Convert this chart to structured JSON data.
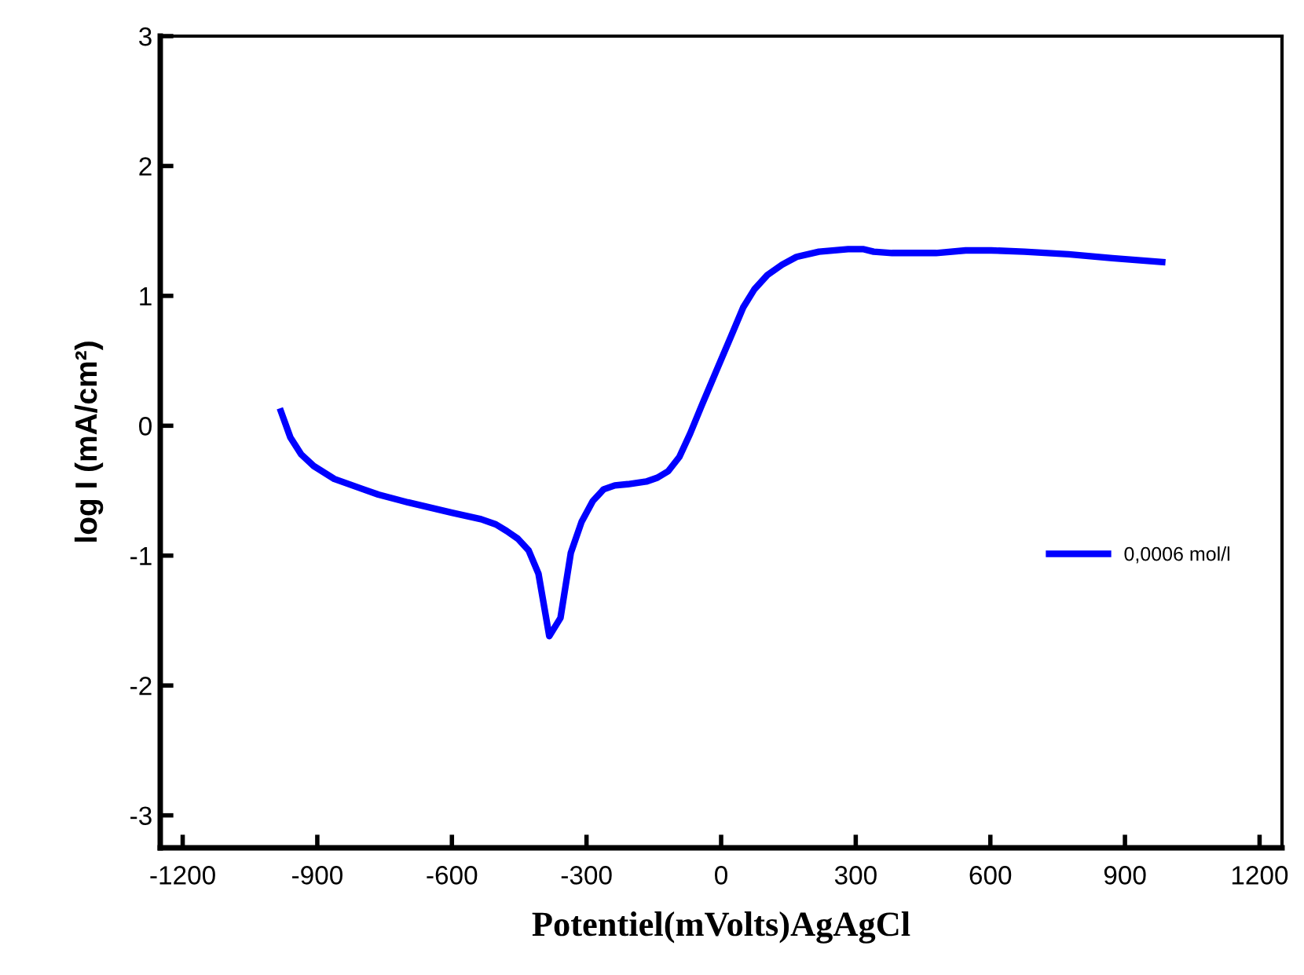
{
  "chart_data": {
    "type": "line",
    "xlabel": "Potentiel(mVolts)AgAgCl",
    "ylabel": "log I (mA/cm²)",
    "xlim": [
      -1250,
      1250
    ],
    "xticks": [
      -1200,
      -900,
      -600,
      -300,
      0,
      300,
      600,
      900,
      1200
    ],
    "ylim": [
      -3.25,
      3
    ],
    "yticks": [
      -3,
      -2,
      -1,
      0,
      1,
      2,
      3
    ],
    "grid": false,
    "legend": "right",
    "marker": "none",
    "line_style": "solid",
    "x": [
      -981,
      -960,
      -936,
      -908,
      -862,
      -797,
      -764,
      -698,
      -600,
      -535,
      -502,
      -478,
      -453,
      -429,
      -407,
      -383,
      -358,
      -335,
      -311,
      -286,
      -262,
      -237,
      -208,
      -167,
      -142,
      -118,
      -93,
      -69,
      -44,
      -11,
      21,
      49,
      74,
      103,
      136,
      168,
      218,
      283,
      316,
      340,
      381,
      479,
      545,
      602,
      676,
      774,
      872,
      983
    ],
    "series": [
      {
        "name": "0,0006 mol/l",
        "color": "#0000ff",
        "values": [
          0.11,
          -0.09,
          -0.22,
          -0.31,
          -0.41,
          -0.49,
          -0.53,
          -0.59,
          -0.67,
          -0.72,
          -0.76,
          -0.81,
          -0.87,
          -0.96,
          -1.14,
          -1.62,
          -1.48,
          -0.98,
          -0.74,
          -0.58,
          -0.49,
          -0.46,
          -0.45,
          -0.43,
          -0.4,
          -0.35,
          -0.24,
          -0.06,
          0.15,
          0.42,
          0.68,
          0.91,
          1.05,
          1.16,
          1.24,
          1.3,
          1.34,
          1.36,
          1.36,
          1.34,
          1.33,
          1.33,
          1.35,
          1.35,
          1.34,
          1.32,
          1.29,
          1.26
        ]
      }
    ]
  }
}
